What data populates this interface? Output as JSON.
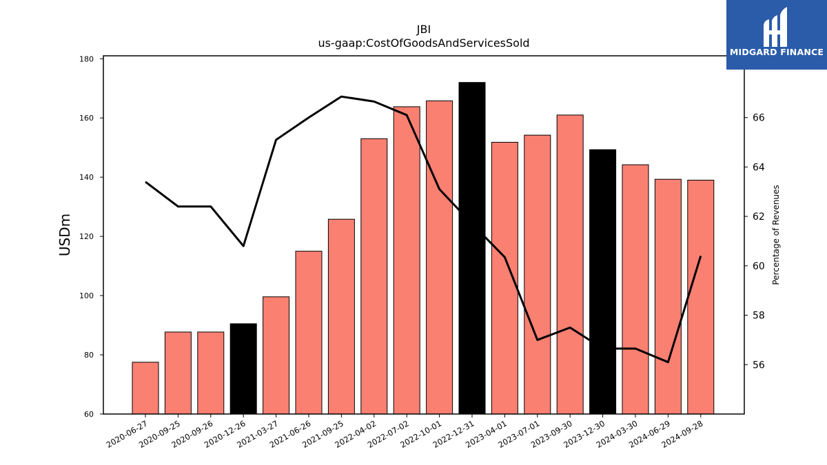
{
  "logo": {
    "text": "MIDGARD FINANCE"
  },
  "colors": {
    "bar": "#fa8072",
    "bar_highlight": "#000000",
    "line": "#000000"
  },
  "chart_data": {
    "type": "bar",
    "title": "JBI",
    "subtitle": "us-gaap:CostOfGoodsAndServicesSold",
    "ylabel": "USDm",
    "y2label": "Percentage of Revenues",
    "ylim": [
      60,
      181
    ],
    "y2lim": [
      54,
      68.5
    ],
    "yticks": [
      60,
      80,
      100,
      120,
      140,
      160,
      180
    ],
    "y2ticks": [
      56,
      58,
      60,
      62,
      64,
      66
    ],
    "categories": [
      "2020-06-27",
      "2020-09-25",
      "2020-09-26",
      "2020-12-26",
      "2021-03-27",
      "2021-06-26",
      "2021-09-25",
      "2022-04-02",
      "2022-07-02",
      "2022-10-01",
      "2022-12-31",
      "2023-04-01",
      "2023-07-01",
      "2023-09-30",
      "2023-12-30",
      "2024-03-30",
      "2024-06-29",
      "2024-09-28"
    ],
    "series": [
      {
        "values": [
          77.5,
          87.7,
          87.7,
          90.5,
          99.6,
          115.0,
          125.8,
          153.0,
          163.8,
          165.8,
          172.0,
          151.8,
          154.2,
          161.0,
          149.3,
          144.2,
          139.3,
          139.0
        ],
        "highlight": [
          false,
          false,
          false,
          true,
          false,
          false,
          false,
          false,
          false,
          false,
          true,
          false,
          false,
          false,
          true,
          false,
          false,
          false
        ]
      },
      {
        "axis": "right",
        "values": [
          63.4,
          62.4,
          62.4,
          60.8,
          65.1,
          66.0,
          66.85,
          66.65,
          66.1,
          63.1,
          61.7,
          60.35,
          57.0,
          57.5,
          56.65,
          56.65,
          56.1,
          60.4
        ]
      }
    ]
  }
}
